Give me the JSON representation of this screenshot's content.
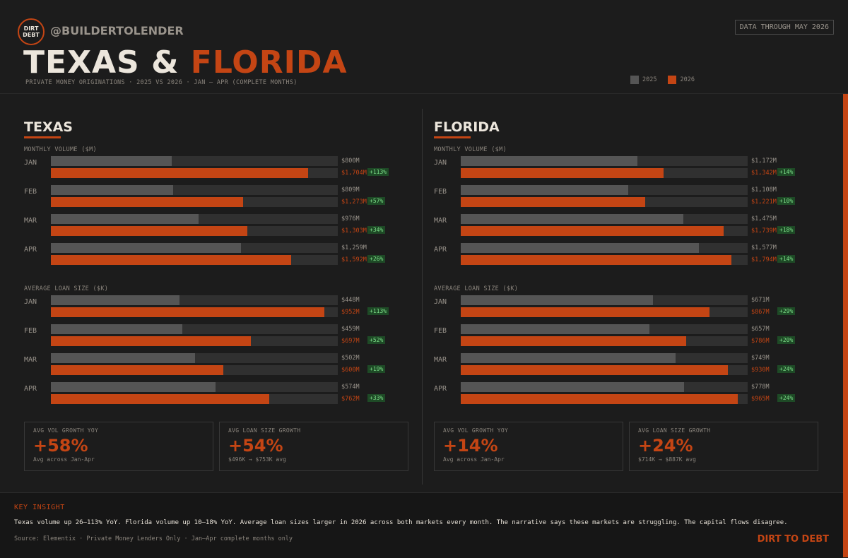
{
  "header": {
    "logo_line1": "DIRT",
    "logo_line2": "DEBT",
    "handle": "@BUILDERTOLENDER",
    "data_through": "DATA THROUGH MAY 2026",
    "title_part1": "TEXAS",
    "title_amp": "&",
    "title_part2": "FLORIDA",
    "subtitle": "PRIVATE MONEY ORIGINATIONS  ·  2025 VS 2026  ·  JAN — APR (COMPLETE MONTHS)"
  },
  "legend": [
    {
      "label": "2025",
      "color": "#555555"
    },
    {
      "label": "2026",
      "color": "#c44514"
    }
  ],
  "colors": {
    "bar_2025": "#555555",
    "bar_2026": "#c44514",
    "track": "#303030",
    "accent": "#c44514",
    "badge_bg": "#1e4a26",
    "badge_text": "#7ee08a"
  },
  "chart_data": [
    {
      "type": "bar",
      "title": "TEXAS",
      "ylabel": "MONTHLY VOLUME ($M)",
      "categories": [
        "JAN",
        "FEB",
        "MAR",
        "APR"
      ],
      "xlim": [
        0,
        1900
      ],
      "series": [
        {
          "name": "2025",
          "values": [
            800,
            809,
            976,
            1259
          ],
          "labels": [
            "$800M",
            "$809M",
            "$976M",
            "$1,259M"
          ]
        },
        {
          "name": "2026",
          "values": [
            1704,
            1273,
            1303,
            1592
          ],
          "labels": [
            "$1,704M",
            "$1,273M",
            "$1,303M",
            "$1,592M"
          ]
        }
      ],
      "growth": [
        "+113%",
        "+57%",
        "+34%",
        "+26%"
      ]
    },
    {
      "type": "bar",
      "title": "TEXAS",
      "ylabel": "AVERAGE LOAN SIZE ($K)",
      "categories": [
        "JAN",
        "FEB",
        "MAR",
        "APR"
      ],
      "xlim": [
        0,
        1000
      ],
      "series": [
        {
          "name": "2025",
          "values": [
            448,
            459,
            502,
            574
          ],
          "labels": [
            "$448M",
            "$459M",
            "$502M",
            "$574M"
          ]
        },
        {
          "name": "2026",
          "values": [
            952,
            697,
            600,
            762
          ],
          "labels": [
            "$952M",
            "$697M",
            "$600M",
            "$762M"
          ]
        }
      ],
      "growth": [
        "+113%",
        "+52%",
        "+19%",
        "+33%"
      ]
    },
    {
      "type": "bar",
      "title": "FLORIDA",
      "ylabel": "MONTHLY VOLUME ($M)",
      "categories": [
        "JAN",
        "FEB",
        "MAR",
        "APR"
      ],
      "xlim": [
        0,
        1900
      ],
      "series": [
        {
          "name": "2025",
          "values": [
            1172,
            1108,
            1475,
            1577
          ],
          "labels": [
            "$1,172M",
            "$1,108M",
            "$1,475M",
            "$1,577M"
          ]
        },
        {
          "name": "2026",
          "values": [
            1342,
            1221,
            1739,
            1794
          ],
          "labels": [
            "$1,342M",
            "$1,221M",
            "$1,739M",
            "$1,794M"
          ]
        }
      ],
      "growth": [
        "+14%",
        "+10%",
        "+18%",
        "+14%"
      ]
    },
    {
      "type": "bar",
      "title": "FLORIDA",
      "ylabel": "AVERAGE LOAN SIZE ($K)",
      "categories": [
        "JAN",
        "FEB",
        "MAR",
        "APR"
      ],
      "xlim": [
        0,
        1000
      ],
      "series": [
        {
          "name": "2025",
          "values": [
            671,
            657,
            749,
            778
          ],
          "labels": [
            "$671M",
            "$657M",
            "$749M",
            "$778M"
          ]
        },
        {
          "name": "2026",
          "values": [
            867,
            786,
            930,
            965
          ],
          "labels": [
            "$867M",
            "$786M",
            "$930M",
            "$965M"
          ]
        }
      ],
      "growth": [
        "+29%",
        "+20%",
        "+24%",
        "+24%"
      ]
    }
  ],
  "panels": [
    {
      "title": "TEXAS",
      "volume_label": "MONTHLY VOLUME ($M)",
      "loan_label": "AVERAGE LOAN SIZE ($K)",
      "stats": [
        {
          "label": "AVG VOL GROWTH YOY",
          "value": "+58%",
          "sub": "Avg across Jan-Apr"
        },
        {
          "label": "AVG LOAN SIZE GROWTH",
          "value": "+54%",
          "sub": "$496K → $753K avg"
        }
      ]
    },
    {
      "title": "FLORIDA",
      "volume_label": "MONTHLY VOLUME ($M)",
      "loan_label": "AVERAGE LOAN SIZE ($K)",
      "stats": [
        {
          "label": "AVG VOL GROWTH YOY",
          "value": "+14%",
          "sub": "Avg across Jan-Apr"
        },
        {
          "label": "AVG LOAN SIZE GROWTH",
          "value": "+24%",
          "sub": "$714K → $887K avg"
        }
      ]
    }
  ],
  "footer": {
    "heading": "KEY INSIGHT",
    "text": "Texas volume up 26–113% YoY.  Florida volume up 10–18% YoY.  Average loan sizes larger in 2026 across both markets every month.  The narrative says these markets are struggling.  The capital flows disagree.",
    "source": "Source: Elementix  ·  Private Money Lenders Only  ·  Jan–Apr complete months only",
    "brand": "DIRT TO DEBT"
  }
}
